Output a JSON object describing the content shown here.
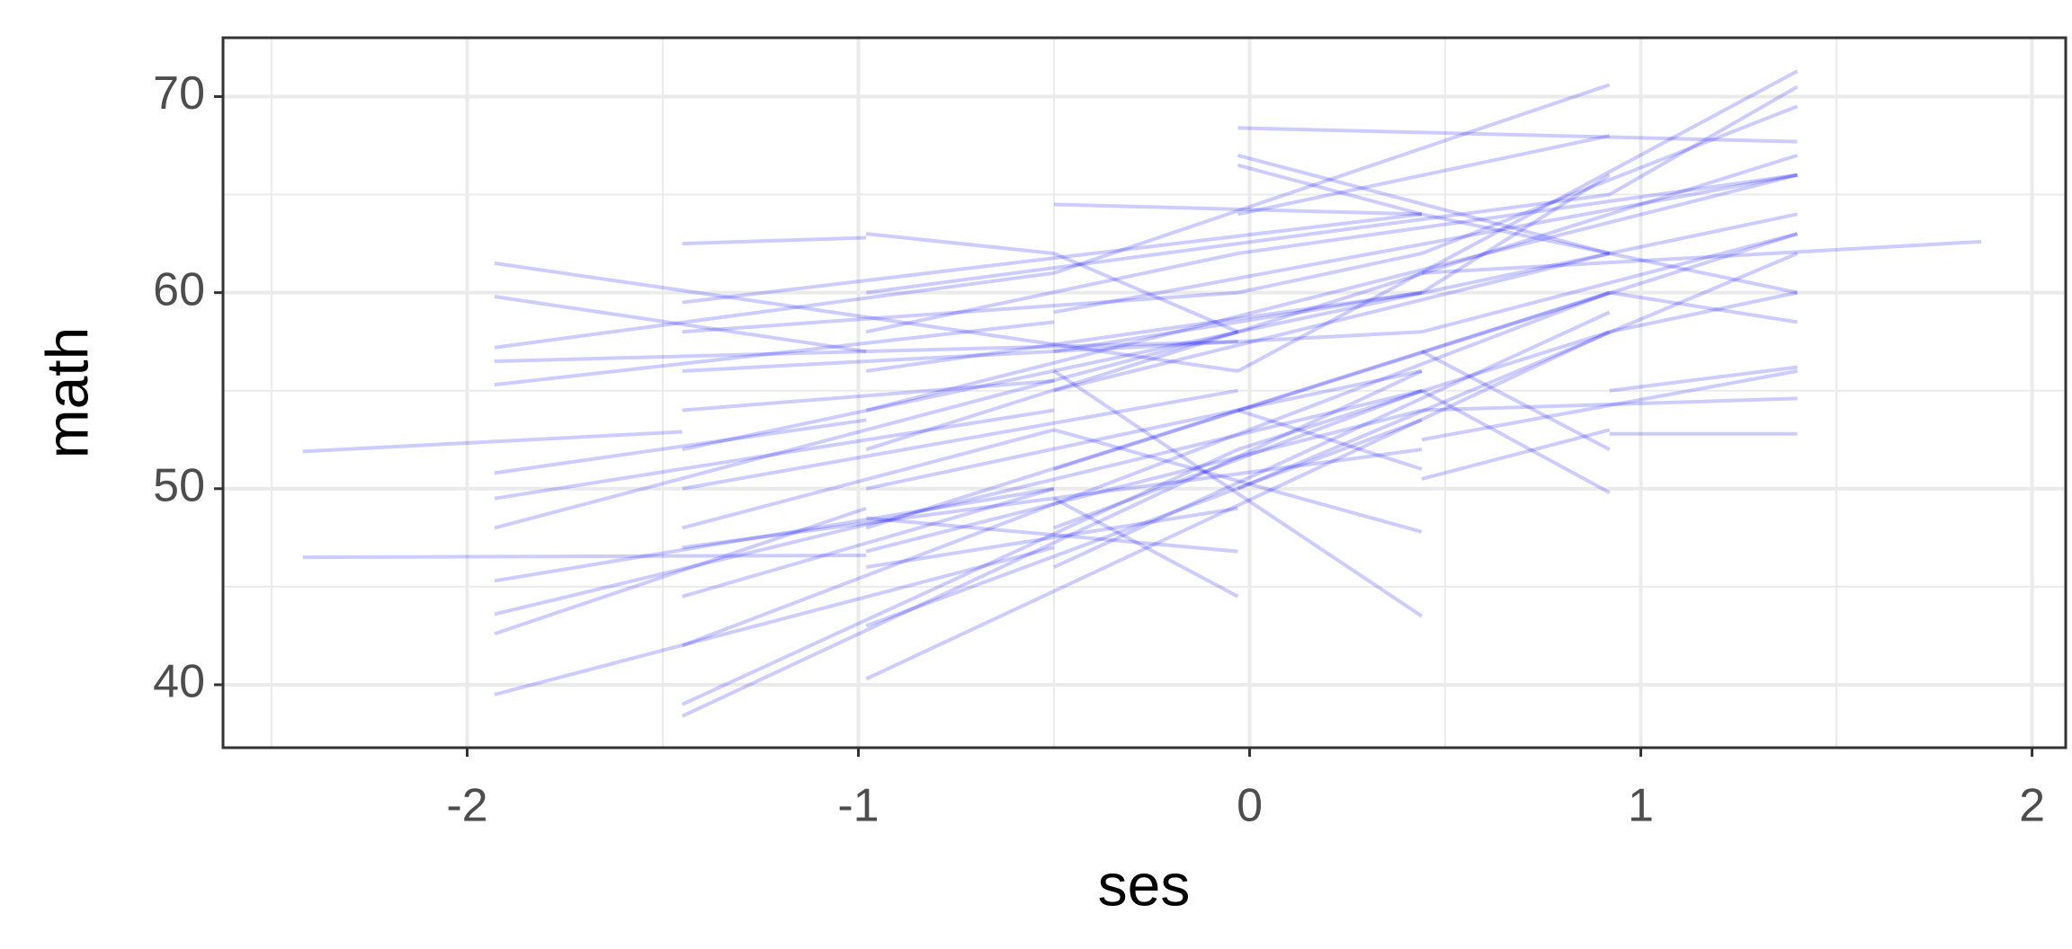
{
  "chart_data": {
    "type": "segments",
    "xlabel": "ses",
    "ylabel": "math",
    "xlim": [
      -2.624,
      2.086
    ],
    "ylim": [
      36.79,
      73.0
    ],
    "xticks": [
      -2,
      -1,
      0,
      1,
      2
    ],
    "yticks": [
      40,
      50,
      60,
      70
    ],
    "xminorticks": [
      -2.5,
      -1.5,
      -0.5,
      0.5,
      1.5
    ],
    "yminorticks": [
      45,
      55,
      65
    ],
    "grid": true,
    "color": "#0000ff",
    "alpha": 0.2,
    "segments": [
      {
        "x": [
          -2.42,
          -1.45
        ],
        "values": [
          51.9,
          52.9
        ]
      },
      {
        "x": [
          -2.42,
          -0.98
        ],
        "values": [
          46.5,
          46.6
        ]
      },
      {
        "x": [
          -1.93,
          -0.03
        ],
        "values": [
          61.5,
          56
        ]
      },
      {
        "x": [
          -1.93,
          -0.5
        ],
        "values": [
          39.5,
          47
        ]
      },
      {
        "x": [
          -1.93,
          -0.98
        ],
        "values": [
          42.6,
          49
        ]
      },
      {
        "x": [
          -1.93,
          0.44
        ],
        "values": [
          43.6,
          55
        ]
      },
      {
        "x": [
          -1.93,
          -0.5
        ],
        "values": [
          45.3,
          50
        ]
      },
      {
        "x": [
          -1.93,
          -0.03
        ],
        "values": [
          48,
          58
        ]
      },
      {
        "x": [
          -1.93,
          -0.5
        ],
        "values": [
          49.5,
          54
        ]
      },
      {
        "x": [
          -1.93,
          -0.98
        ],
        "values": [
          50.8,
          53.5
        ]
      },
      {
        "x": [
          -1.93,
          -0.5
        ],
        "values": [
          55.3,
          58.5
        ]
      },
      {
        "x": [
          -1.93,
          -0.03
        ],
        "values": [
          56.5,
          57.5
        ]
      },
      {
        "x": [
          -1.93,
          -0.98
        ],
        "values": [
          59.8,
          57
        ]
      },
      {
        "x": [
          -1.93,
          -0.5
        ],
        "values": [
          57.2,
          61
        ]
      },
      {
        "x": [
          -1.45,
          0.44
        ],
        "values": [
          38.4,
          56
        ]
      },
      {
        "x": [
          -1.45,
          -0.03
        ],
        "values": [
          39,
          52
        ]
      },
      {
        "x": [
          -1.45,
          0.92
        ],
        "values": [
          42,
          60
        ]
      },
      {
        "x": [
          -1.45,
          -0.5
        ],
        "values": [
          44.5,
          50
        ]
      },
      {
        "x": [
          -1.45,
          0.44
        ],
        "values": [
          47,
          52
        ]
      },
      {
        "x": [
          -1.45,
          -0.03
        ],
        "values": [
          50,
          55
        ]
      },
      {
        "x": [
          -1.45,
          0.92
        ],
        "values": [
          52,
          62
        ]
      },
      {
        "x": [
          -1.45,
          -0.5
        ],
        "values": [
          54,
          55.5
        ]
      },
      {
        "x": [
          -1.45,
          0.44
        ],
        "values": [
          56,
          58
        ]
      },
      {
        "x": [
          -1.45,
          -0.03
        ],
        "values": [
          58,
          60
        ]
      },
      {
        "x": [
          -1.45,
          -0.98
        ],
        "values": [
          62.5,
          62.8
        ]
      },
      {
        "x": [
          -1.45,
          0.44
        ],
        "values": [
          59.5,
          64
        ]
      },
      {
        "x": [
          -1.45,
          -0.5
        ],
        "values": [
          48,
          53
        ]
      },
      {
        "x": [
          -0.98,
          0.92
        ],
        "values": [
          40.3,
          58
        ]
      },
      {
        "x": [
          -0.98,
          0.44
        ],
        "values": [
          43,
          53.5
        ]
      },
      {
        "x": [
          -0.98,
          -0.03
        ],
        "values": [
          46,
          49
        ]
      },
      {
        "x": [
          -0.98,
          0.92
        ],
        "values": [
          48,
          60
        ]
      },
      {
        "x": [
          -0.98,
          0.44
        ],
        "values": [
          50,
          56
        ]
      },
      {
        "x": [
          -0.98,
          -0.03
        ],
        "values": [
          52,
          58
        ]
      },
      {
        "x": [
          -0.98,
          1.4
        ],
        "values": [
          54,
          66
        ]
      },
      {
        "x": [
          -0.98,
          0.44
        ],
        "values": [
          56,
          60
        ]
      },
      {
        "x": [
          -0.98,
          -0.03
        ],
        "values": [
          58,
          62
        ]
      },
      {
        "x": [
          -0.98,
          0.92
        ],
        "values": [
          60,
          65
        ]
      },
      {
        "x": [
          -0.98,
          -0.5
        ],
        "values": [
          63,
          62
        ]
      },
      {
        "x": [
          -0.98,
          0.44
        ],
        "values": [
          46.8,
          54
        ]
      },
      {
        "x": [
          -0.98,
          -0.03
        ],
        "values": [
          48.5,
          46.8
        ]
      },
      {
        "x": [
          -0.5,
          0.92
        ],
        "values": [
          46,
          59
        ]
      },
      {
        "x": [
          -0.5,
          0.44
        ],
        "values": [
          48,
          55
        ]
      },
      {
        "x": [
          -0.5,
          -0.03
        ],
        "values": [
          49.5,
          44.5
        ]
      },
      {
        "x": [
          -0.5,
          1.4
        ],
        "values": [
          51,
          63
        ]
      },
      {
        "x": [
          -0.5,
          0.44
        ],
        "values": [
          53,
          47.8
        ]
      },
      {
        "x": [
          -0.5,
          0.92
        ],
        "values": [
          55,
          62
        ]
      },
      {
        "x": [
          -0.5,
          0.44
        ],
        "values": [
          57,
          60
        ]
      },
      {
        "x": [
          -0.5,
          1.4
        ],
        "values": [
          59,
          66
        ]
      },
      {
        "x": [
          -0.5,
          0.92
        ],
        "values": [
          61,
          70.6
        ]
      },
      {
        "x": [
          -0.5,
          0.44
        ],
        "values": [
          64.5,
          64
        ]
      },
      {
        "x": [
          -0.5,
          0.44
        ],
        "values": [
          56,
          43.5
        ]
      },
      {
        "x": [
          -0.5,
          -0.03
        ],
        "values": [
          62,
          58
        ]
      },
      {
        "x": [
          -0.03,
          1.4
        ],
        "values": [
          68.4,
          67.7
        ]
      },
      {
        "x": [
          -0.03,
          0.92
        ],
        "values": [
          67,
          62
        ]
      },
      {
        "x": [
          -0.03,
          1.4
        ],
        "values": [
          50,
          62
        ]
      },
      {
        "x": [
          -0.03,
          0.92
        ],
        "values": [
          52,
          58
        ]
      },
      {
        "x": [
          -0.03,
          0.44
        ],
        "values": [
          54,
          51
        ]
      },
      {
        "x": [
          -0.03,
          1.4
        ],
        "values": [
          56,
          71.3
        ]
      },
      {
        "x": [
          -0.03,
          0.92
        ],
        "values": [
          58,
          64
        ]
      },
      {
        "x": [
          -0.03,
          0.44
        ],
        "values": [
          60,
          62
        ]
      },
      {
        "x": [
          -0.03,
          1.4
        ],
        "values": [
          62,
          66
        ]
      },
      {
        "x": [
          -0.03,
          0.92
        ],
        "values": [
          64,
          68
        ]
      },
      {
        "x": [
          -0.03,
          0.44
        ],
        "values": [
          66.5,
          64
        ]
      },
      {
        "x": [
          0.44,
          1.4
        ],
        "values": [
          52.5,
          56
        ]
      },
      {
        "x": [
          0.44,
          0.92
        ],
        "values": [
          55,
          49.8
        ]
      },
      {
        "x": [
          0.44,
          1.4
        ],
        "values": [
          58,
          63
        ]
      },
      {
        "x": [
          0.44,
          0.92
        ],
        "values": [
          60,
          66
        ]
      },
      {
        "x": [
          0.44,
          1.4
        ],
        "values": [
          62,
          69.5
        ]
      },
      {
        "x": [
          0.44,
          1.87
        ],
        "values": [
          61,
          62.6
        ]
      },
      {
        "x": [
          0.44,
          1.4
        ],
        "values": [
          64,
          60
        ]
      },
      {
        "x": [
          0.44,
          1.4
        ],
        "values": [
          54,
          54.6
        ]
      },
      {
        "x": [
          0.44,
          0.92
        ],
        "values": [
          57,
          52
        ]
      },
      {
        "x": [
          0.92,
          1.4
        ],
        "values": [
          52.8,
          52.8
        ]
      },
      {
        "x": [
          0.92,
          1.4
        ],
        "values": [
          55,
          56.2
        ]
      },
      {
        "x": [
          0.92,
          1.4
        ],
        "values": [
          58,
          60
        ]
      },
      {
        "x": [
          0.92,
          1.4
        ],
        "values": [
          62,
          64
        ]
      },
      {
        "x": [
          0.92,
          1.4
        ],
        "values": [
          64,
          67
        ]
      },
      {
        "x": [
          0.92,
          1.4
        ],
        "values": [
          60,
          58.5
        ]
      },
      {
        "x": [
          0.92,
          1.4
        ],
        "values": [
          65,
          70.5
        ]
      },
      {
        "x": [
          0.44,
          0.92
        ],
        "values": [
          50.5,
          53
        ]
      }
    ]
  }
}
